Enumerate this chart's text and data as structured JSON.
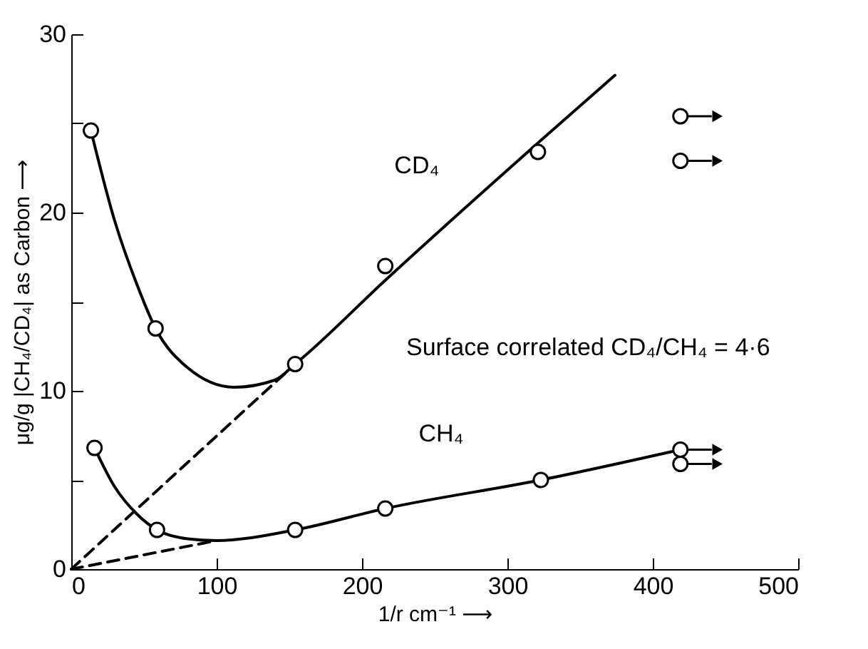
{
  "chart_data": {
    "type": "line",
    "xlabel": "1/r cm⁻¹ ⟶",
    "ylabel": "μg/g |CH₄/CD₄| as Carbon ⟶",
    "xlim": [
      0,
      500
    ],
    "xticks": [
      0,
      100,
      200,
      300,
      400,
      500
    ],
    "ylim": [
      0,
      30
    ],
    "yticks": [
      0,
      {
        "value": 5,
        "label": null
      },
      10,
      {
        "value": 15,
        "label": null
      },
      20,
      {
        "value": 25,
        "label": null
      },
      30
    ],
    "grid": false,
    "annotations": [
      "Surface correlated CD₄/CH₄ = 4·6"
    ],
    "series": [
      {
        "name": "CD₄",
        "color": "#000000",
        "marker": "none",
        "line_style": "solid",
        "x": [
          13.5,
          30,
          45,
          58,
          80,
          112,
          140,
          154,
          216,
          321,
          374
        ],
        "values": [
          24.6,
          19.5,
          16.0,
          13.5,
          11.3,
          10.2,
          10.6,
          11.5,
          16.2,
          23.9,
          27.7
        ]
      },
      {
        "name": "CH₄",
        "color": "#000000",
        "marker": "none",
        "line_style": "solid",
        "x": [
          16,
          30,
          45,
          59,
          80,
          100,
          154,
          216,
          323,
          419
        ],
        "values": [
          6.8,
          4.6,
          3.1,
          2.2,
          1.7,
          1.6,
          2.2,
          3.4,
          5.0,
          6.7
        ]
      },
      {
        "color": "#000000",
        "marker": "none",
        "line_style": "dashed",
        "x": [
          0,
          154
        ],
        "values": [
          0,
          11.5
        ]
      },
      {
        "color": "#000000",
        "marker": "none",
        "line_style": "dashed",
        "x": [
          0,
          100
        ],
        "values": [
          0,
          1.6
        ]
      },
      {
        "type": "scatter",
        "color": "#000000",
        "marker": "circle",
        "x": [
          13.5,
          58,
          154,
          216,
          321
        ],
        "values": [
          24.6,
          13.5,
          11.5,
          17.0,
          23.4
        ]
      },
      {
        "type": "scatter",
        "color": "#000000",
        "marker": "circle",
        "x": [
          16,
          59,
          154,
          216,
          323
        ],
        "values": [
          6.8,
          2.2,
          2.2,
          3.4,
          5.0
        ]
      },
      {
        "type": "scatter",
        "color": "#000000",
        "marker": "circle",
        "x": [
          419,
          419,
          419,
          419
        ],
        "values": [
          25.4,
          22.9,
          6.7,
          5.9
        ]
      }
    ]
  }
}
